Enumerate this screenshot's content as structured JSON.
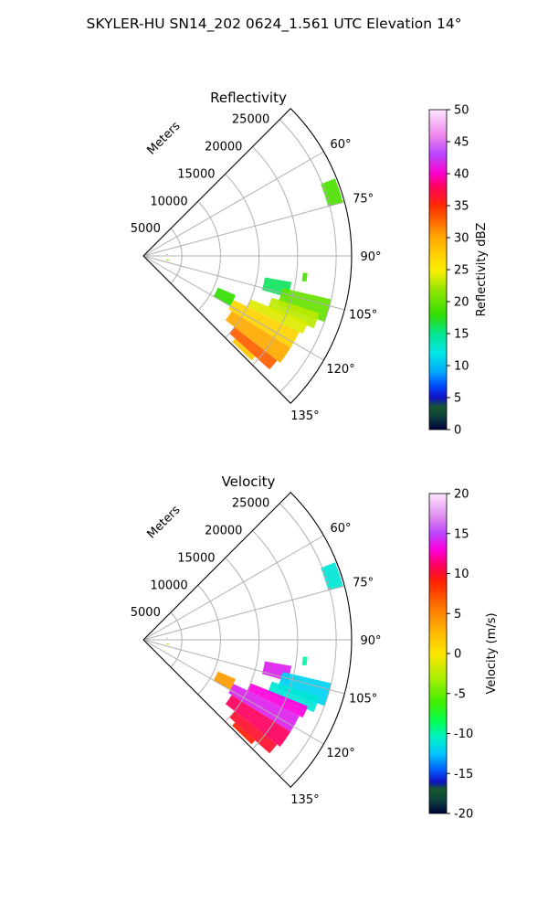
{
  "figure": {
    "title": "SKYLER-HU  SN14_202  0624_1.561 UTC Elevation 14°"
  },
  "chart_data": [
    {
      "type": "polar-sector",
      "title": "Reflectivity",
      "radial_label": "Meters",
      "radial_ticks": [
        5000,
        10000,
        15000,
        20000,
        25000
      ],
      "radial_range": [
        0,
        27000
      ],
      "angle_range_deg": [
        45,
        135
      ],
      "angle_ticks": [
        "60°",
        "75°",
        "90°",
        "105°",
        "120°",
        "135°"
      ],
      "grid": true,
      "colorbar": {
        "label": "Reflectivity dBZ",
        "min": 0,
        "max": 50,
        "ticks": [
          0,
          5,
          10,
          15,
          20,
          25,
          30,
          35,
          40,
          45,
          50
        ],
        "stops": [
          {
            "v": 0,
            "c": "#00003c"
          },
          {
            "v": 2,
            "c": "#0d3d3d"
          },
          {
            "v": 3.5,
            "c": "#155a2d"
          },
          {
            "v": 5,
            "c": "#1010c8"
          },
          {
            "v": 7,
            "c": "#0050ff"
          },
          {
            "v": 9,
            "c": "#00aaff"
          },
          {
            "v": 12,
            "c": "#00e6e6"
          },
          {
            "v": 15,
            "c": "#00e690"
          },
          {
            "v": 18,
            "c": "#33dd00"
          },
          {
            "v": 22,
            "c": "#99e600"
          },
          {
            "v": 25,
            "c": "#ffee00"
          },
          {
            "v": 30,
            "c": "#ffaa00"
          },
          {
            "v": 35,
            "c": "#ff2a00"
          },
          {
            "v": 38,
            "c": "#ff0060"
          },
          {
            "v": 40,
            "c": "#ff00cc"
          },
          {
            "v": 43,
            "c": "#bb44ff"
          },
          {
            "v": 46,
            "c": "#ee88ee"
          },
          {
            "v": 50,
            "c": "#ffe6ff"
          }
        ]
      },
      "echo_regions": [
        {
          "theta": [
            68,
            75
          ],
          "r": [
            24800,
            26800
          ],
          "value": 19
        },
        {
          "theta": [
            96,
            99
          ],
          "r": [
            20800,
            21400
          ],
          "value": 19
        },
        {
          "theta": [
            100,
            106
          ],
          "r": [
            16000,
            19500
          ],
          "value": 16
        },
        {
          "theta": [
            103,
            110
          ],
          "r": [
            18500,
            25000
          ],
          "value": 20
        },
        {
          "theta": [
            108,
            113
          ],
          "r": [
            17500,
            24000
          ],
          "value": 23
        },
        {
          "theta": [
            112,
            116
          ],
          "r": [
            15000,
            23000
          ],
          "value": 24
        },
        {
          "theta": [
            116,
            122
          ],
          "r": [
            13000,
            22500
          ],
          "value": 27
        },
        {
          "theta": [
            122,
            128
          ],
          "r": [
            13500,
            22500
          ],
          "value": 30
        },
        {
          "theta": [
            128,
            132
          ],
          "r": [
            15000,
            22000
          ],
          "value": 33
        },
        {
          "theta": [
            132,
            134
          ],
          "r": [
            16000,
            19500
          ],
          "value": 28
        },
        {
          "theta": [
            113,
            120
          ],
          "r": [
            10500,
            13000
          ],
          "value": 18
        },
        {
          "theta": [
            86,
            88
          ],
          "r": [
            3000,
            3200
          ],
          "value": 16
        },
        {
          "theta": [
            99,
            101
          ],
          "r": [
            3000,
            3400
          ],
          "value": 20
        }
      ]
    },
    {
      "type": "polar-sector",
      "title": "Velocity",
      "radial_label": "Meters",
      "radial_ticks": [
        5000,
        10000,
        15000,
        20000,
        25000
      ],
      "radial_range": [
        0,
        27000
      ],
      "angle_range_deg": [
        45,
        135
      ],
      "angle_ticks": [
        "60°",
        "75°",
        "90°",
        "105°",
        "120°",
        "135°"
      ],
      "grid": true,
      "colorbar": {
        "label": "Velocity (m/s)",
        "min": -20,
        "max": 20,
        "ticks": [
          -20,
          -15,
          -10,
          -5,
          0,
          5,
          10,
          15,
          20
        ],
        "stops": [
          {
            "v": -20,
            "c": "#00003c"
          },
          {
            "v": -18.5,
            "c": "#0d3d3d"
          },
          {
            "v": -17,
            "c": "#155a2d"
          },
          {
            "v": -16,
            "c": "#1010c8"
          },
          {
            "v": -14.5,
            "c": "#0060ff"
          },
          {
            "v": -12.5,
            "c": "#00c8ff"
          },
          {
            "v": -10.5,
            "c": "#00f0c8"
          },
          {
            "v": -8.5,
            "c": "#00ff50"
          },
          {
            "v": -6,
            "c": "#44ee00"
          },
          {
            "v": -3,
            "c": "#aaee00"
          },
          {
            "v": 0,
            "c": "#ffe600"
          },
          {
            "v": 3,
            "c": "#ffb000"
          },
          {
            "v": 6,
            "c": "#ff7000"
          },
          {
            "v": 9,
            "c": "#ff2000"
          },
          {
            "v": 11,
            "c": "#ff0060"
          },
          {
            "v": 13,
            "c": "#ff00dd"
          },
          {
            "v": 15,
            "c": "#bb44ff"
          },
          {
            "v": 17,
            "c": "#dd88ee"
          },
          {
            "v": 20,
            "c": "#ffe6ff"
          }
        ]
      },
      "echo_regions": [
        {
          "theta": [
            68,
            75
          ],
          "r": [
            24800,
            26800
          ],
          "value": -11
        },
        {
          "theta": [
            96,
            99
          ],
          "r": [
            20800,
            21400
          ],
          "value": -10
        },
        {
          "theta": [
            100,
            106
          ],
          "r": [
            16000,
            19500
          ],
          "value": 14
        },
        {
          "theta": [
            103,
            110
          ],
          "r": [
            18500,
            25000
          ],
          "value": -12
        },
        {
          "theta": [
            108,
            113
          ],
          "r": [
            17500,
            24000
          ],
          "value": -11
        },
        {
          "theta": [
            112,
            116
          ],
          "r": [
            15000,
            23000
          ],
          "value": 13
        },
        {
          "theta": [
            116,
            122
          ],
          "r": [
            13000,
            22500
          ],
          "value": 14
        },
        {
          "theta": [
            122,
            128
          ],
          "r": [
            13500,
            22500
          ],
          "value": 11
        },
        {
          "theta": [
            128,
            132
          ],
          "r": [
            15000,
            22000
          ],
          "value": 10
        },
        {
          "theta": [
            132,
            134
          ],
          "r": [
            16000,
            19500
          ],
          "value": 9
        },
        {
          "theta": [
            113,
            120
          ],
          "r": [
            10500,
            13000
          ],
          "value": 4
        },
        {
          "theta": [
            86,
            88
          ],
          "r": [
            3000,
            3200
          ],
          "value": 3
        },
        {
          "theta": [
            99,
            101
          ],
          "r": [
            3000,
            3400
          ],
          "value": -4
        }
      ]
    }
  ]
}
